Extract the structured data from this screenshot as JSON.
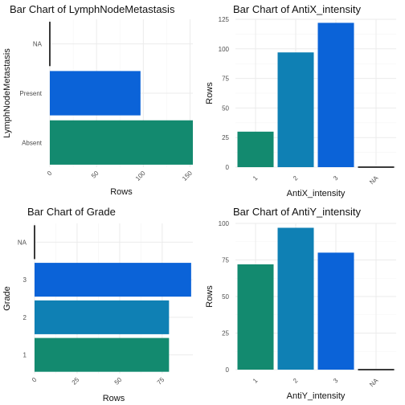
{
  "colors": {
    "level_1": "#138a6f",
    "level_2": "#0f80b4",
    "level_3": "#0b63d8",
    "na": "#3a3a3a"
  },
  "chart_data": [
    {
      "id": "lymph",
      "type": "bar",
      "orientation": "horizontal",
      "title": "Bar Chart of LymphNodeMetastasis",
      "xlabel": "Rows",
      "ylabel": "LymphNodeMetastasis",
      "categories": [
        "Absent",
        "Present",
        "NA"
      ],
      "values": [
        153,
        97,
        1
      ],
      "bar_colors": [
        "level_1",
        "level_3",
        "na"
      ],
      "ticks": [
        0,
        50,
        100,
        150
      ],
      "lim": [
        0,
        153
      ],
      "grid": true
    },
    {
      "id": "antix",
      "type": "bar",
      "orientation": "vertical",
      "title": "Bar Chart of AntiX_intensity",
      "xlabel": "AntiX_intensity",
      "ylabel": "Rows",
      "categories": [
        "1",
        "2",
        "3",
        "NA"
      ],
      "values": [
        30,
        97,
        122,
        1
      ],
      "bar_colors": [
        "level_1",
        "level_2",
        "level_3",
        "na"
      ],
      "ticks": [
        0,
        25,
        50,
        75,
        100,
        125
      ],
      "lim": [
        0,
        125
      ],
      "grid": true
    },
    {
      "id": "grade",
      "type": "bar",
      "orientation": "horizontal",
      "title": "Bar Chart of Grade",
      "xlabel": "Rows",
      "ylabel": "Grade",
      "categories": [
        "1",
        "2",
        "3",
        "NA"
      ],
      "values": [
        79,
        79,
        92,
        1
      ],
      "bar_colors": [
        "level_1",
        "level_2",
        "level_3",
        "na"
      ],
      "ticks": [
        0,
        25,
        50,
        75
      ],
      "lim": [
        0,
        93
      ],
      "grid": true
    },
    {
      "id": "antiy",
      "type": "bar",
      "orientation": "vertical",
      "title": "Bar Chart of AntiY_intensity",
      "xlabel": "AntiY_intensity",
      "ylabel": "Rows",
      "categories": [
        "1",
        "2",
        "3",
        "NA"
      ],
      "values": [
        72,
        97,
        80,
        1
      ],
      "bar_colors": [
        "level_1",
        "level_2",
        "level_3",
        "na"
      ],
      "ticks": [
        0,
        25,
        50,
        75,
        100
      ],
      "lim": [
        0,
        100
      ],
      "grid": true
    }
  ]
}
